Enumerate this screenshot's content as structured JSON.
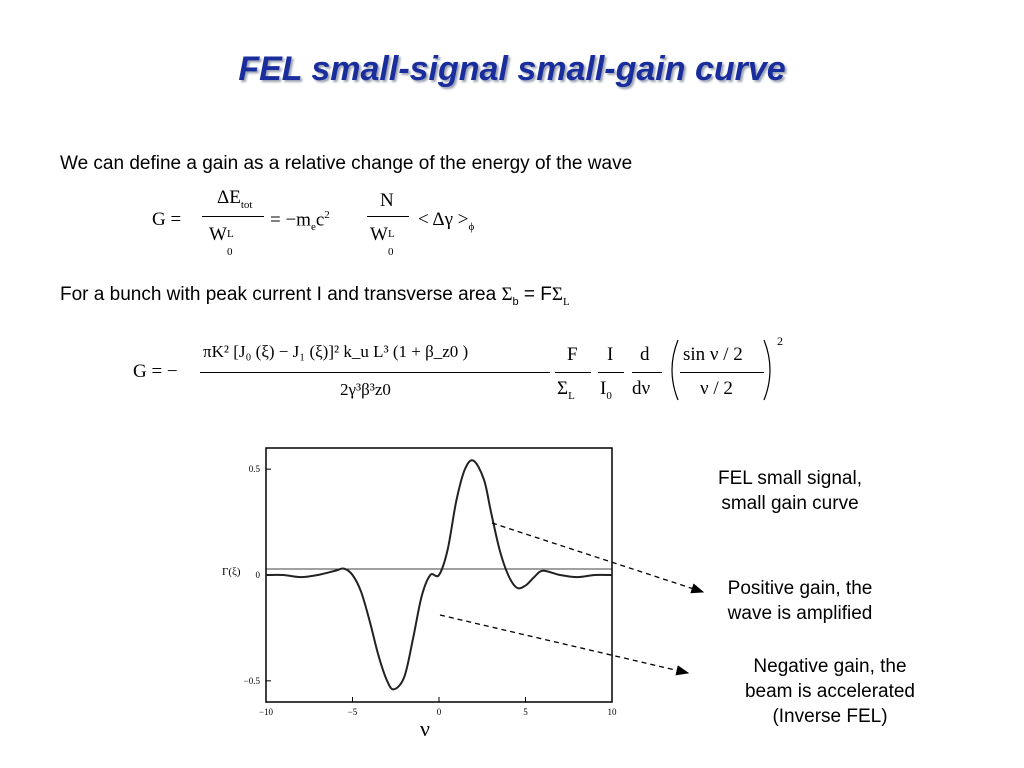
{
  "title": "FEL small-signal small-gain curve",
  "intro_text": "We can define a gain as a relative change of the energy of the wave",
  "eq1": {
    "lhs": "G =",
    "frac1_num": "ΔE",
    "frac1_num_sub": "tot",
    "frac1_den": "W",
    "frac1_den_sup": "L",
    "frac1_den_sub": "0",
    "middle": "= −m",
    "middle_sub": "e",
    "c": "c",
    "c_sup": "2",
    "frac2_num": "N",
    "frac2_den": "W",
    "frac2_den_sup": "L",
    "frac2_den_sub": "0",
    "tail": "< Δγ >",
    "tail_sub": "ϕ"
  },
  "bunch_text": {
    "main": "For a bunch with peak current I and transverse area ",
    "sigma": "Σ",
    "sub_b": "b",
    "eq": " = F",
    "sigma2": "Σ",
    "sub_L": "L"
  },
  "eq2": {
    "lhs": "G = −",
    "num": "πK² [J₀ (ξ) − J₁ (ξ)]² k_u L³ (1 + β_z0 )",
    "den": "2γ³β³z0",
    "f_num": "F",
    "f_den": "Σ",
    "f_den_sub": "L",
    "i_num": "I",
    "i_den": "I",
    "i_den_sub": "0",
    "d_num": "d",
    "d_den": "dν",
    "s_num": "sin ν / 2",
    "s_den": "ν / 2",
    "power": "2"
  },
  "plot": {
    "ylabel": "Γ(ξ)",
    "xlabel": "ν",
    "ytick_labels": [
      "0.5",
      "0",
      "−0.5"
    ],
    "xtick_labels": [
      "−10",
      "−5",
      "0",
      "5",
      "10"
    ]
  },
  "captions": {
    "curve_title_line1": "FEL small signal,",
    "curve_title_line2": "small gain curve",
    "positive_line1": "Positive gain, the",
    "positive_line2": "wave is amplified",
    "negative_line1": "Negative gain, the",
    "negative_line2": "beam is accelerated",
    "negative_line3": "(Inverse FEL)"
  },
  "chart_data": {
    "type": "line",
    "xlabel": "ν",
    "ylabel": "Γ(ξ)",
    "xlim": [
      -10,
      10
    ],
    "ylim": [
      -0.6,
      0.6
    ],
    "x": [
      -10,
      -9,
      -8,
      -7,
      -6,
      -5.5,
      -5,
      -4.5,
      -4,
      -3.5,
      -3,
      -2.6,
      -2,
      -1.5,
      -1,
      -0.5,
      0,
      0.5,
      1,
      1.5,
      2,
      2.6,
      3,
      3.5,
      4,
      4.5,
      5,
      5.5,
      6,
      7,
      8,
      9,
      10
    ],
    "y": [
      0.0,
      0.0,
      -0.01,
      0.0,
      0.02,
      0.03,
      0.0,
      -0.08,
      -0.22,
      -0.38,
      -0.5,
      -0.54,
      -0.48,
      -0.3,
      -0.1,
      0.0,
      0.0,
      0.12,
      0.35,
      0.5,
      0.54,
      0.45,
      0.3,
      0.12,
      0.0,
      -0.06,
      -0.05,
      -0.01,
      0.02,
      0.0,
      -0.01,
      0.0,
      0.0
    ],
    "xticks": [
      -10,
      -5,
      0,
      5,
      10
    ],
    "yticks": [
      0.5,
      0,
      -0.5
    ],
    "grid": false
  }
}
